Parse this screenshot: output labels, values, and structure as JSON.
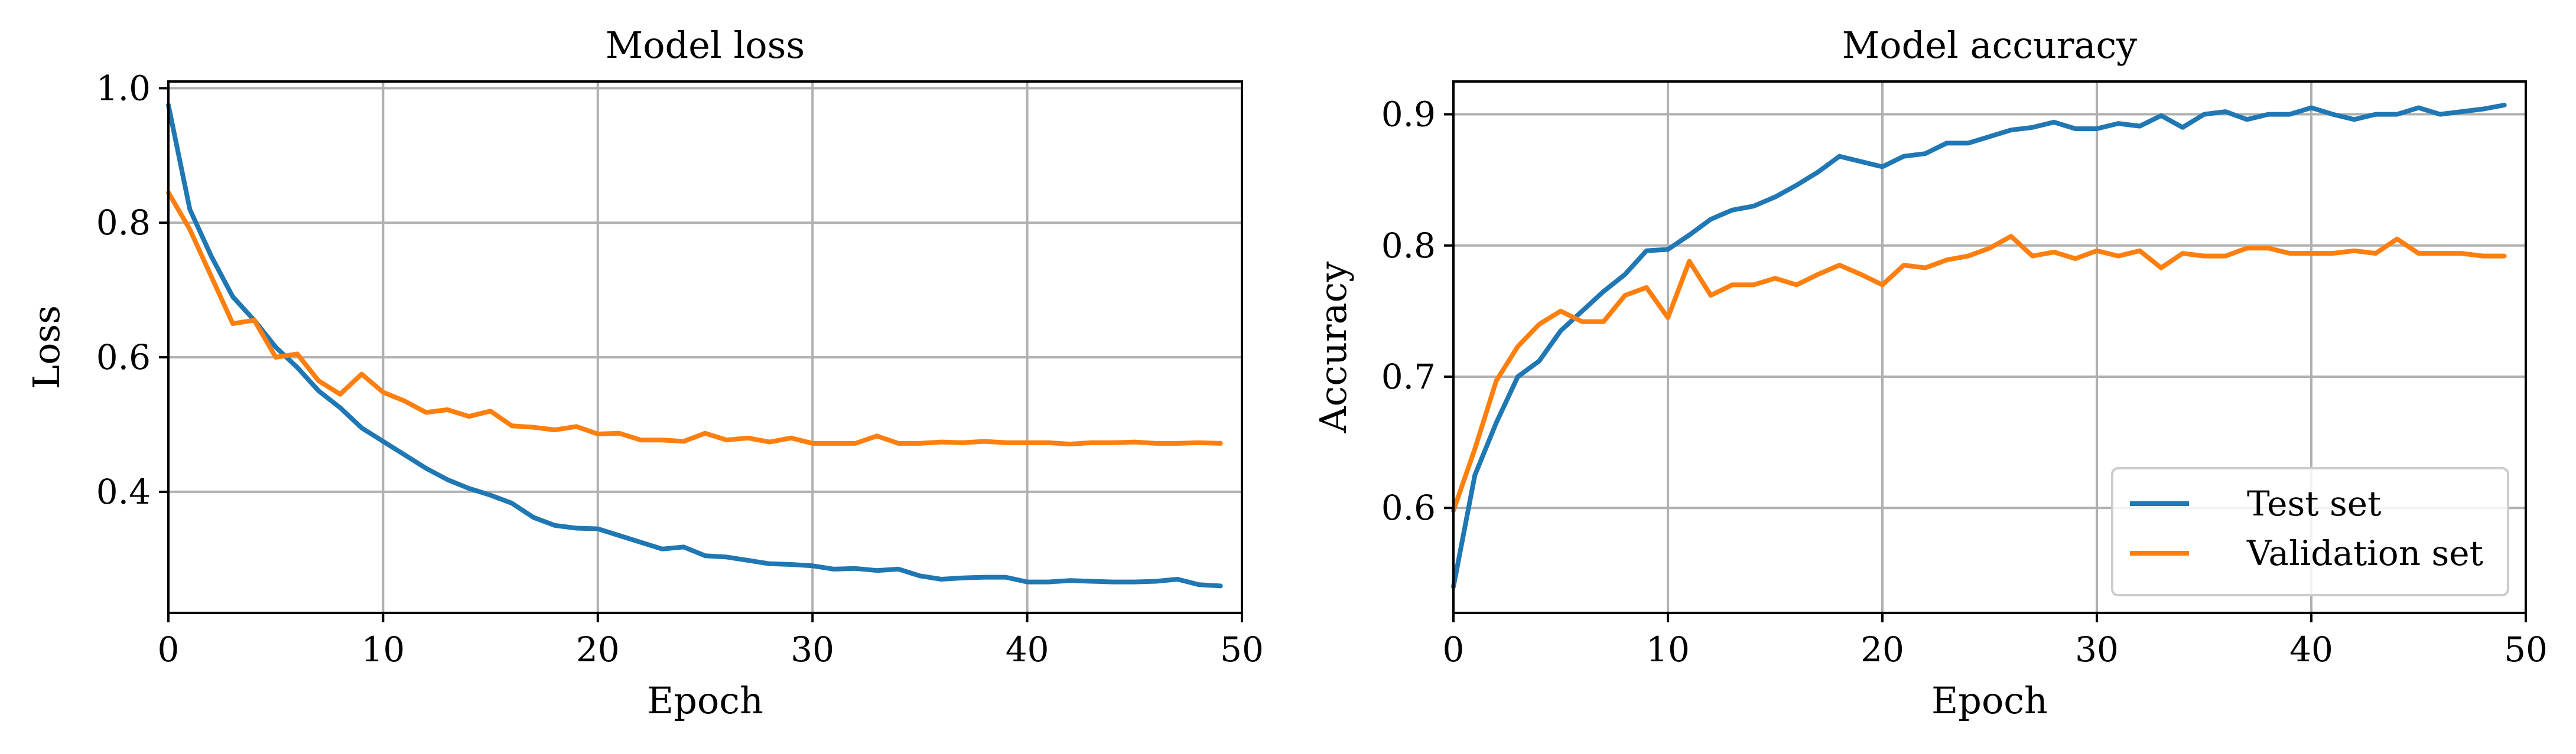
{
  "chart_data": [
    {
      "type": "line",
      "title": "Model loss",
      "xlabel": "Epoch",
      "ylabel": "Loss",
      "xlim": [
        0,
        50
      ],
      "ylim": [
        0.22,
        1.01
      ],
      "xticks": [
        0,
        10,
        20,
        30,
        40,
        50
      ],
      "yticks": [
        0.4,
        0.6,
        0.8,
        1.0
      ],
      "ytick_labels": [
        "0.4",
        "0.6",
        "0.8",
        "1.0"
      ],
      "grid": true,
      "legend": null,
      "series": [
        {
          "color": "#1f77b4",
          "x": [
            0,
            1,
            2,
            3,
            4,
            5,
            6,
            7,
            8,
            9,
            10,
            11,
            12,
            13,
            14,
            15,
            16,
            17,
            18,
            19,
            20,
            21,
            22,
            23,
            24,
            25,
            26,
            27,
            28,
            29,
            30,
            31,
            32,
            33,
            34,
            35,
            36,
            37,
            38,
            39,
            40,
            41,
            42,
            43,
            44,
            45,
            46,
            47,
            48,
            49
          ],
          "values": [
            0.975,
            0.82,
            0.75,
            0.69,
            0.655,
            0.615,
            0.585,
            0.55,
            0.525,
            0.495,
            0.475,
            0.455,
            0.435,
            0.418,
            0.405,
            0.395,
            0.383,
            0.362,
            0.35,
            0.346,
            0.345,
            0.335,
            0.325,
            0.315,
            0.318,
            0.305,
            0.303,
            0.298,
            0.293,
            0.292,
            0.29,
            0.285,
            0.286,
            0.283,
            0.285,
            0.275,
            0.27,
            0.272,
            0.273,
            0.273,
            0.266,
            0.266,
            0.268,
            0.267,
            0.266,
            0.266,
            0.267,
            0.27,
            0.262,
            0.26
          ]
        },
        {
          "color": "#ff7f0e",
          "x": [
            0,
            1,
            2,
            3,
            4,
            5,
            6,
            7,
            8,
            9,
            10,
            11,
            12,
            13,
            14,
            15,
            16,
            17,
            18,
            19,
            20,
            21,
            22,
            23,
            24,
            25,
            26,
            27,
            28,
            29,
            30,
            31,
            32,
            33,
            34,
            35,
            36,
            37,
            38,
            39,
            40,
            41,
            42,
            43,
            44,
            45,
            46,
            47,
            48,
            49
          ],
          "values": [
            0.845,
            0.79,
            0.72,
            0.65,
            0.655,
            0.6,
            0.605,
            0.565,
            0.545,
            0.575,
            0.548,
            0.535,
            0.518,
            0.522,
            0.512,
            0.52,
            0.498,
            0.496,
            0.492,
            0.497,
            0.486,
            0.487,
            0.477,
            0.477,
            0.475,
            0.487,
            0.477,
            0.48,
            0.474,
            0.48,
            0.472,
            0.472,
            0.472,
            0.483,
            0.472,
            0.472,
            0.474,
            0.473,
            0.475,
            0.473,
            0.473,
            0.473,
            0.471,
            0.473,
            0.473,
            0.474,
            0.472,
            0.472,
            0.473,
            0.472
          ]
        }
      ]
    },
    {
      "type": "line",
      "title": "Model accuracy",
      "xlabel": "Epoch",
      "ylabel": "Accuracy",
      "xlim": [
        0,
        50
      ],
      "ylim": [
        0.52,
        0.925
      ],
      "xticks": [
        0,
        10,
        20,
        30,
        40,
        50
      ],
      "yticks": [
        0.6,
        0.7,
        0.8,
        0.9
      ],
      "ytick_labels": [
        "0.6",
        "0.7",
        "0.8",
        "0.9"
      ],
      "grid": true,
      "legend": "lower-right",
      "series": [
        {
          "name": "Test set",
          "color": "#1f77b4",
          "x": [
            0,
            1,
            2,
            3,
            4,
            5,
            6,
            7,
            8,
            9,
            10,
            11,
            12,
            13,
            14,
            15,
            16,
            17,
            18,
            19,
            20,
            21,
            22,
            23,
            24,
            25,
            26,
            27,
            28,
            29,
            30,
            31,
            32,
            33,
            34,
            35,
            36,
            37,
            38,
            39,
            40,
            41,
            42,
            43,
            44,
            45,
            46,
            47,
            48,
            49
          ],
          "values": [
            0.54,
            0.625,
            0.665,
            0.7,
            0.712,
            0.735,
            0.75,
            0.765,
            0.778,
            0.796,
            0.797,
            0.808,
            0.82,
            0.827,
            0.83,
            0.837,
            0.846,
            0.856,
            0.868,
            0.864,
            0.86,
            0.868,
            0.87,
            0.878,
            0.878,
            0.883,
            0.888,
            0.89,
            0.894,
            0.889,
            0.889,
            0.893,
            0.891,
            0.899,
            0.89,
            0.9,
            0.902,
            0.896,
            0.9,
            0.9,
            0.905,
            0.9,
            0.896,
            0.9,
            0.9,
            0.905,
            0.9,
            0.902,
            0.904,
            0.907
          ]
        },
        {
          "name": "Validation set",
          "color": "#ff7f0e",
          "x": [
            0,
            1,
            2,
            3,
            4,
            5,
            6,
            7,
            8,
            9,
            10,
            11,
            12,
            13,
            14,
            15,
            16,
            17,
            18,
            19,
            20,
            21,
            22,
            23,
            24,
            25,
            26,
            27,
            28,
            29,
            30,
            31,
            32,
            33,
            34,
            35,
            36,
            37,
            38,
            39,
            40,
            41,
            42,
            43,
            44,
            45,
            46,
            47,
            48,
            49
          ],
          "values": [
            0.598,
            0.645,
            0.697,
            0.723,
            0.74,
            0.75,
            0.742,
            0.742,
            0.762,
            0.768,
            0.745,
            0.788,
            0.762,
            0.77,
            0.77,
            0.775,
            0.77,
            0.778,
            0.785,
            0.778,
            0.77,
            0.785,
            0.783,
            0.789,
            0.792,
            0.798,
            0.807,
            0.792,
            0.795,
            0.79,
            0.796,
            0.792,
            0.796,
            0.783,
            0.794,
            0.792,
            0.792,
            0.798,
            0.798,
            0.794,
            0.794,
            0.794,
            0.796,
            0.794,
            0.805,
            0.794,
            0.794,
            0.794,
            0.792,
            0.792
          ]
        }
      ]
    }
  ]
}
